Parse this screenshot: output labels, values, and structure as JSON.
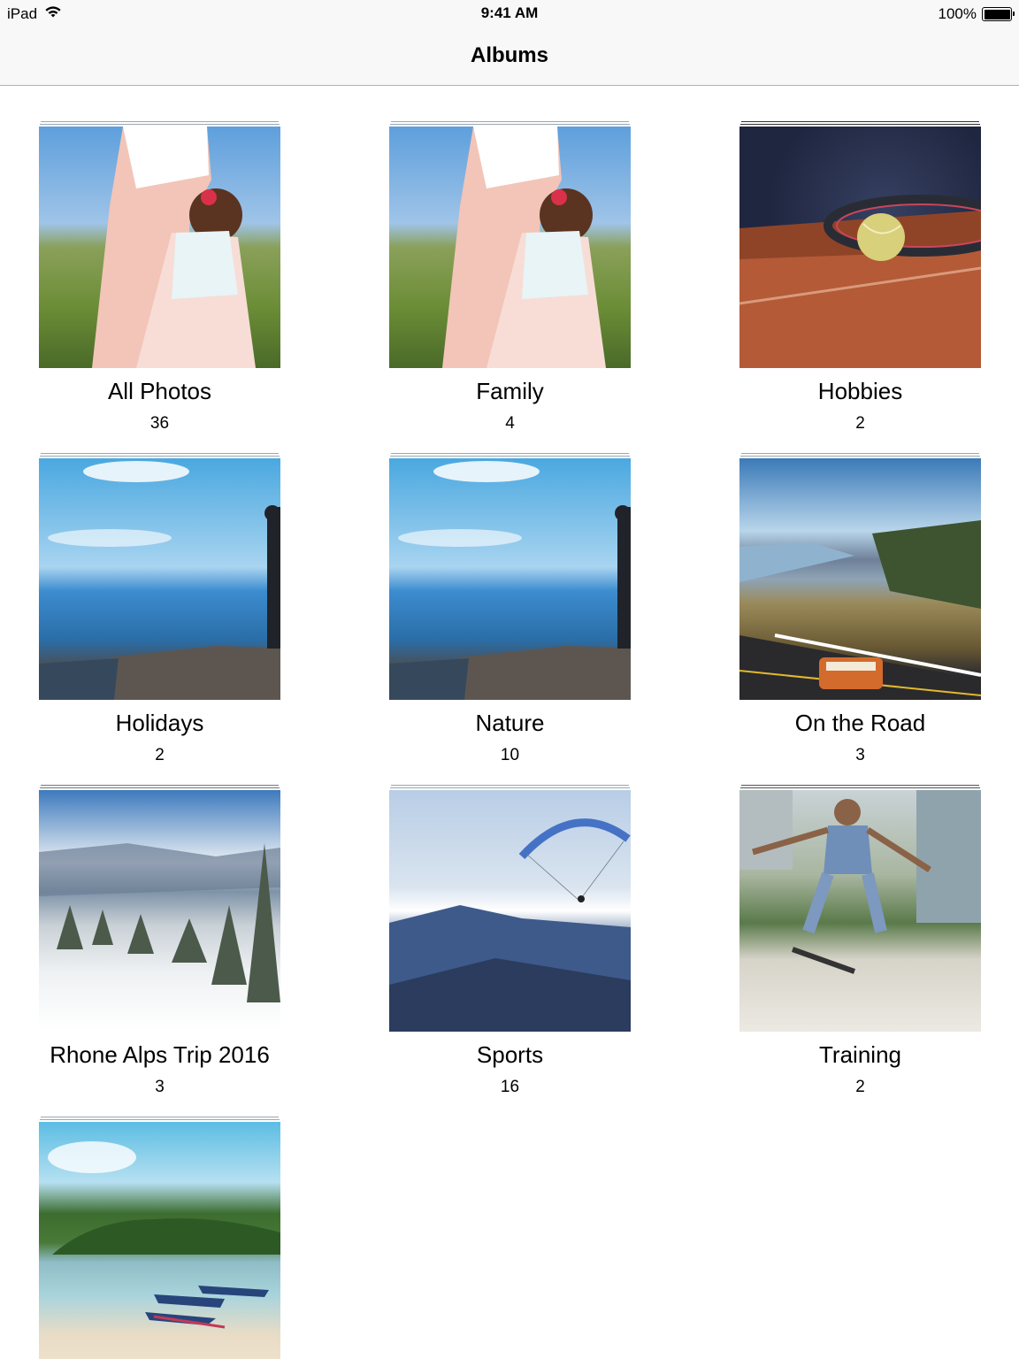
{
  "status_bar": {
    "device": "iPad",
    "time": "9:41 AM",
    "battery_percent": "100%",
    "battery_level": 1.0
  },
  "nav": {
    "title": "Albums"
  },
  "albums": [
    {
      "title": "All Photos",
      "count": "36",
      "thumbnail": "mother-and-daughter-in-field"
    },
    {
      "title": "Family",
      "count": "4",
      "thumbnail": "mother-and-daughter-in-field"
    },
    {
      "title": "Hobbies",
      "count": "2",
      "thumbnail": "tennis-racket-and-ball-on-clay"
    },
    {
      "title": "Holidays",
      "count": "2",
      "thumbnail": "person-on-canyon-cliff"
    },
    {
      "title": "Nature",
      "count": "10",
      "thumbnail": "person-on-canyon-cliff"
    },
    {
      "title": "On the Road",
      "count": "3",
      "thumbnail": "van-on-river-gorge-road"
    },
    {
      "title": "Rhone Alps Trip 2016",
      "count": "3",
      "thumbnail": "snowy-forest-mountains"
    },
    {
      "title": "Sports",
      "count": "16",
      "thumbnail": "paraglider-over-mountains"
    },
    {
      "title": "Training",
      "count": "2",
      "thumbnail": "skateboarder-jumping"
    },
    {
      "title": "",
      "count": "",
      "thumbnail": "boats-on-tropical-beach"
    }
  ]
}
